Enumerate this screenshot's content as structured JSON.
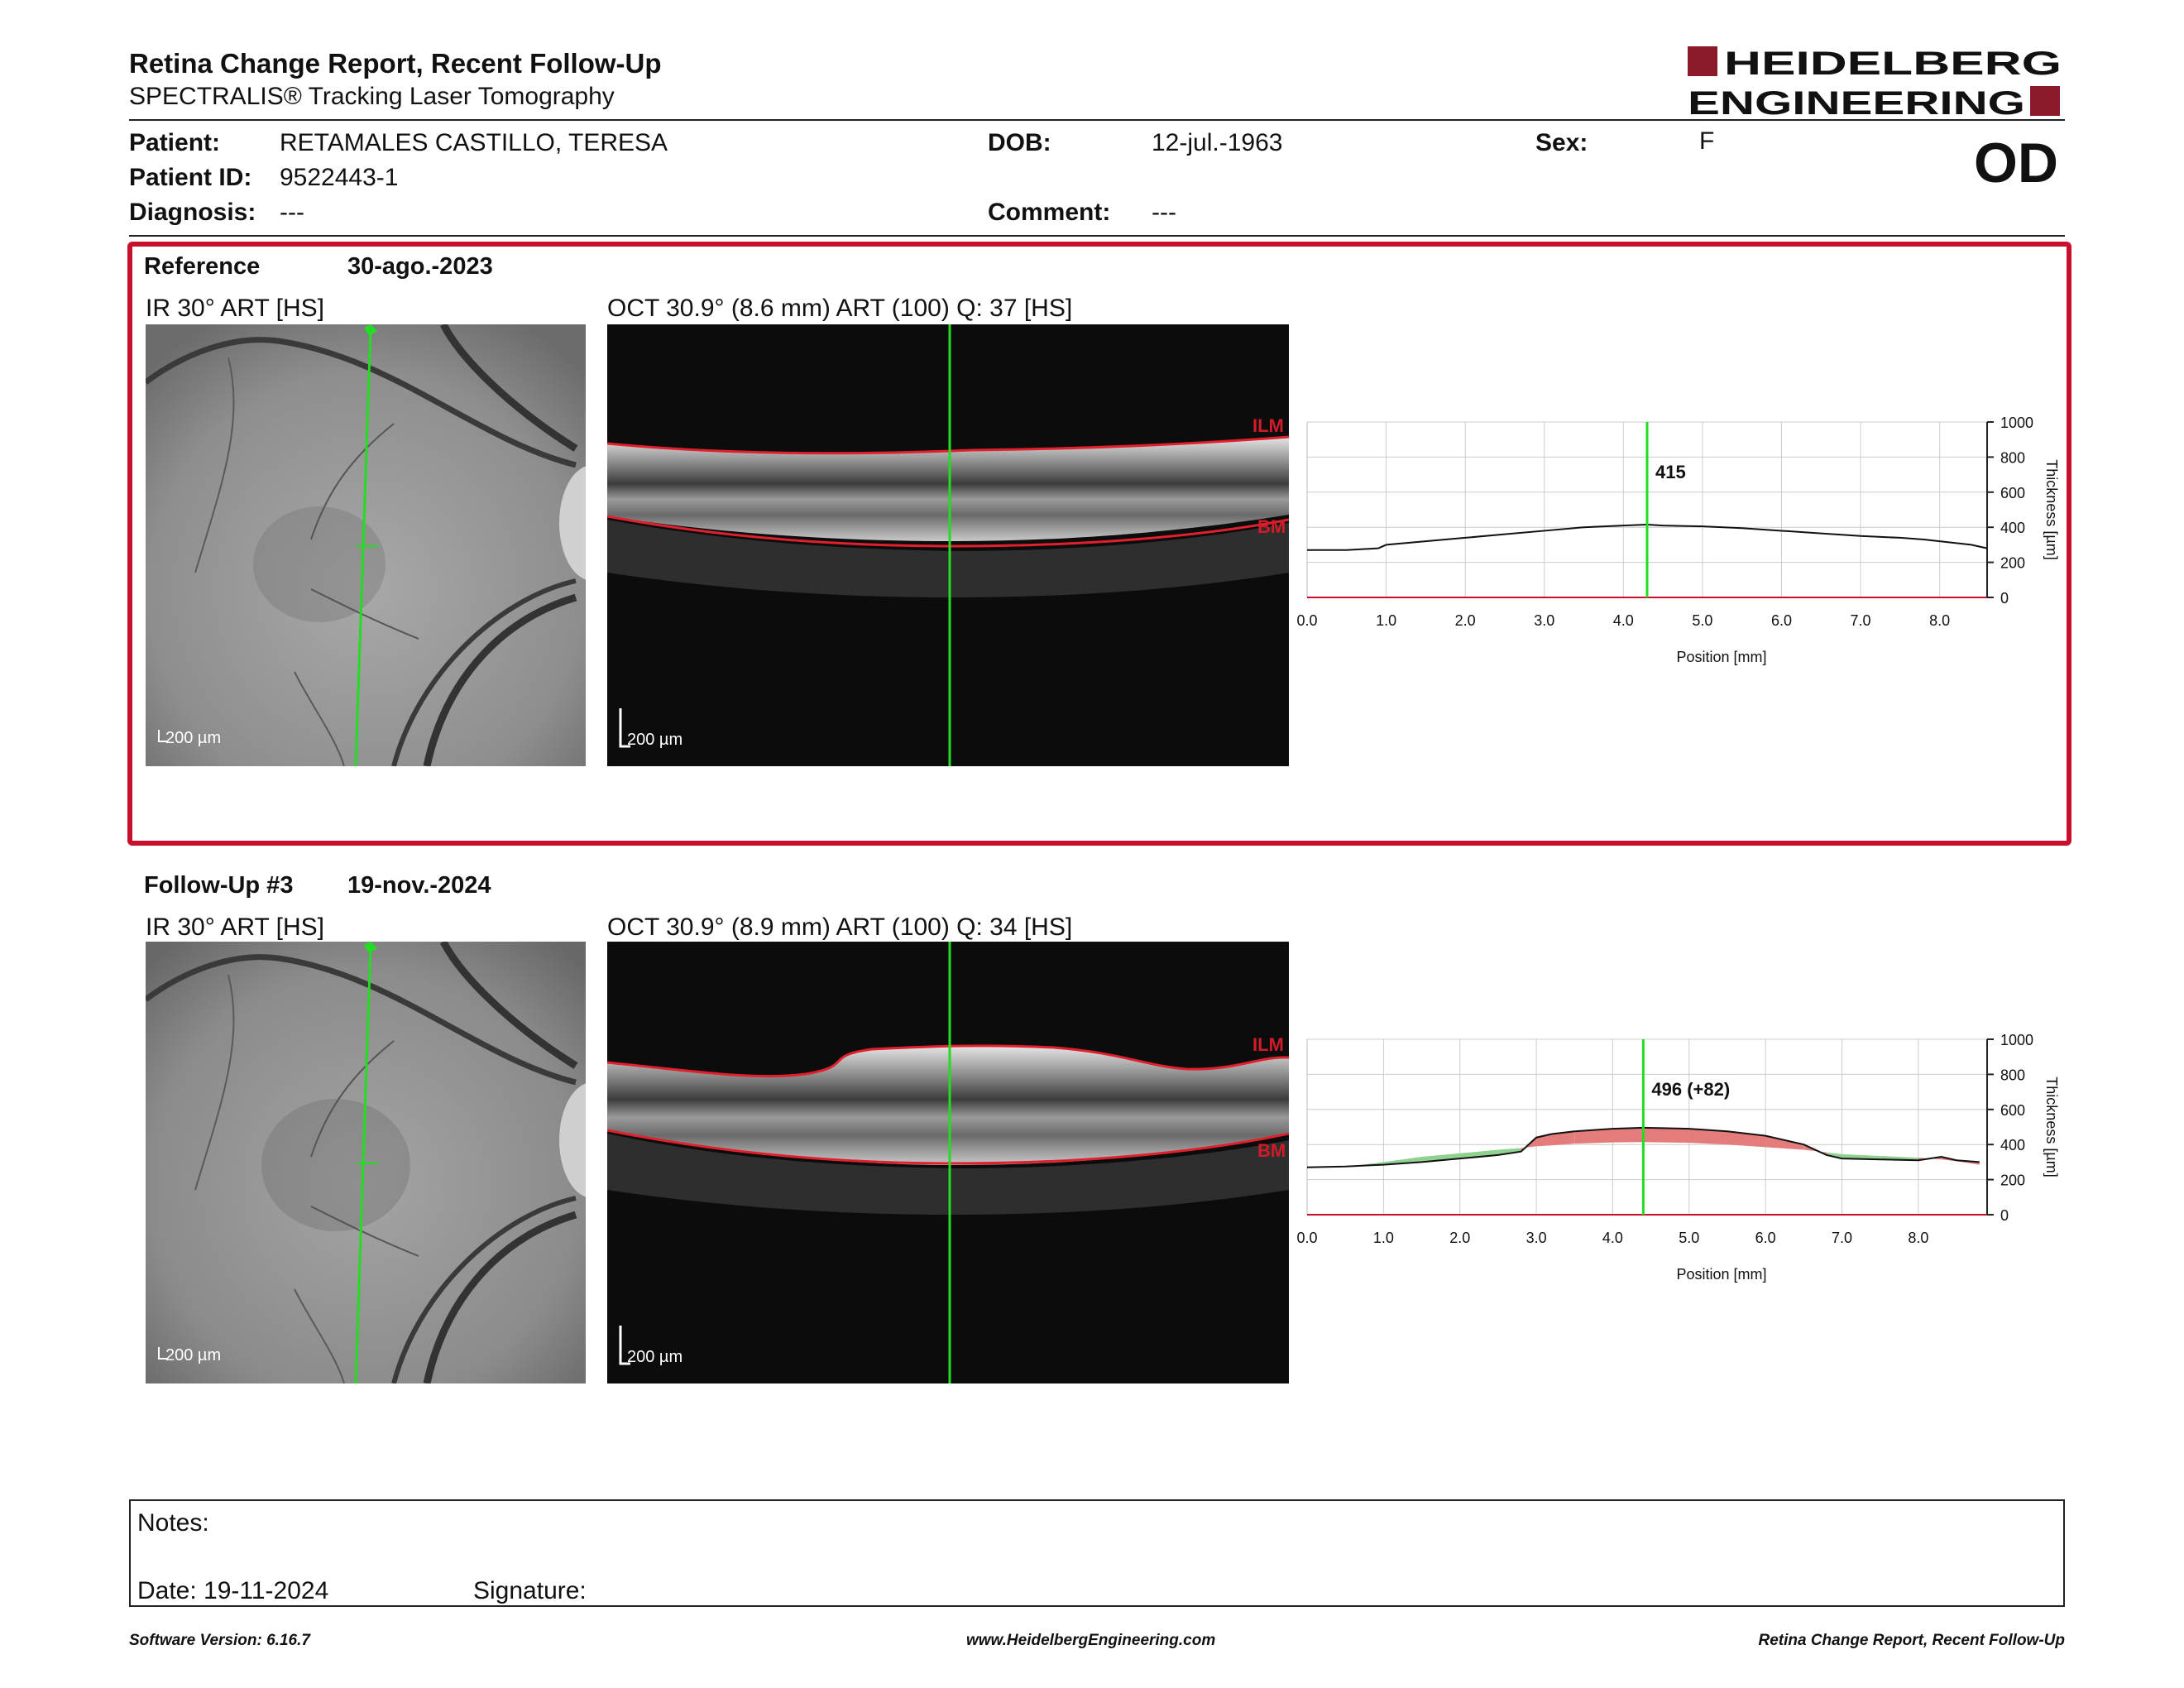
{
  "report": {
    "title": "Retina Change Report, Recent Follow-Up",
    "subtitle": "SPECTRALIS® Tracking Laser Tomography",
    "brand_line1": "HEIDELBERG",
    "brand_line2": "ENGINEERING",
    "brand_color": "#8b1a2b",
    "eye": "OD"
  },
  "patient": {
    "name_label": "Patient:",
    "name": "RETAMALES CASTILLO, TERESA",
    "id_label": "Patient ID:",
    "id": "9522443-1",
    "diagnosis_label": "Diagnosis:",
    "diagnosis": "---",
    "dob_label": "DOB:",
    "dob": "12-jul.-1963",
    "comment_label": "Comment:",
    "comment": "---",
    "sex_label": "Sex:",
    "sex": "F"
  },
  "reference": {
    "label": "Reference",
    "date": "30-ago.-2023",
    "ir_title": "IR 30° ART [HS]",
    "oct_title": "OCT 30.9° (8.6 mm) ART (100) Q: 37 [HS]",
    "ir_scale": "200 µm",
    "oct_scale": "200 µm",
    "ilm_label": "ILM",
    "bm_label": "BM"
  },
  "followup": {
    "label": "Follow-Up #3",
    "date": "19-nov.-2024",
    "ir_title": "IR 30° ART [HS]",
    "oct_title": "OCT 30.9° (8.9 mm) ART (100) Q: 34 [HS]",
    "ir_scale": "200 µm",
    "oct_scale": "200 µm",
    "ilm_label": "ILM",
    "bm_label": "BM"
  },
  "chart_data": [
    {
      "type": "line",
      "xlabel": "Position [mm]",
      "ylabel": "Thickness [µm]",
      "xlim": [
        0,
        8.6
      ],
      "ylim": [
        0,
        1000
      ],
      "x_ticks": [
        "0.0",
        "1.0",
        "2.0",
        "3.0",
        "4.0",
        "5.0",
        "6.0",
        "7.0",
        "8.0"
      ],
      "y_ticks": [
        "0",
        "200",
        "400",
        "600",
        "800",
        "1000"
      ],
      "grid": true,
      "cursor_x": 4.3,
      "cursor_label": "415",
      "series": [
        {
          "x": [
            0.0,
            0.5,
            0.9,
            1.0,
            1.5,
            2.0,
            2.5,
            3.0,
            3.5,
            4.0,
            4.3,
            4.5,
            5.0,
            5.5,
            6.0,
            6.5,
            7.0,
            7.5,
            7.8,
            8.0,
            8.2,
            8.4,
            8.6
          ],
          "y": [
            270,
            270,
            280,
            300,
            320,
            340,
            360,
            380,
            400,
            410,
            415,
            410,
            405,
            395,
            380,
            365,
            350,
            340,
            330,
            320,
            310,
            300,
            280
          ]
        }
      ]
    },
    {
      "type": "area",
      "xlabel": "Position [mm]",
      "ylabel": "Thickness [µm]",
      "xlim": [
        0,
        8.9
      ],
      "ylim": [
        0,
        1000
      ],
      "x_ticks": [
        "0.0",
        "1.0",
        "2.0",
        "3.0",
        "4.0",
        "5.0",
        "6.0",
        "7.0",
        "8.0"
      ],
      "y_ticks": [
        "0",
        "200",
        "400",
        "600",
        "800",
        "1000"
      ],
      "grid": true,
      "cursor_x": 4.4,
      "cursor_label": "496 (+82)",
      "increase_color": "#e57c7c",
      "decrease_color": "#8fd18f",
      "series": [
        {
          "x": [
            0.0,
            0.5,
            1.0,
            1.5,
            2.0,
            2.5,
            2.8,
            3.0,
            3.2,
            3.5,
            4.0,
            4.4,
            5.0,
            5.5,
            6.0,
            6.5,
            6.8,
            7.0,
            7.5,
            8.0,
            8.3,
            8.5,
            8.8
          ],
          "y": [
            270,
            275,
            285,
            300,
            320,
            340,
            360,
            440,
            460,
            475,
            490,
            496,
            490,
            475,
            450,
            400,
            340,
            320,
            315,
            310,
            330,
            310,
            300
          ]
        },
        {
          "x": [
            0.0,
            0.5,
            1.0,
            1.5,
            2.0,
            2.5,
            2.8,
            3.0,
            3.2,
            3.5,
            4.0,
            4.4,
            5.0,
            5.5,
            6.0,
            6.5,
            6.8,
            7.0,
            7.5,
            8.0,
            8.3,
            8.5,
            8.8
          ],
          "y": [
            270,
            272,
            300,
            330,
            350,
            370,
            380,
            390,
            395,
            405,
            412,
            414,
            410,
            400,
            385,
            370,
            355,
            345,
            335,
            325,
            315,
            305,
            285
          ]
        }
      ]
    }
  ],
  "notes": {
    "notes_label": "Notes:",
    "date_text": "Date: 19-11-2024",
    "signature_label": "Signature:"
  },
  "footer": {
    "left": "Software Version: 6.16.7",
    "center": "www.HeidelbergEngineering.com",
    "right": "Retina Change Report, Recent Follow-Up"
  }
}
